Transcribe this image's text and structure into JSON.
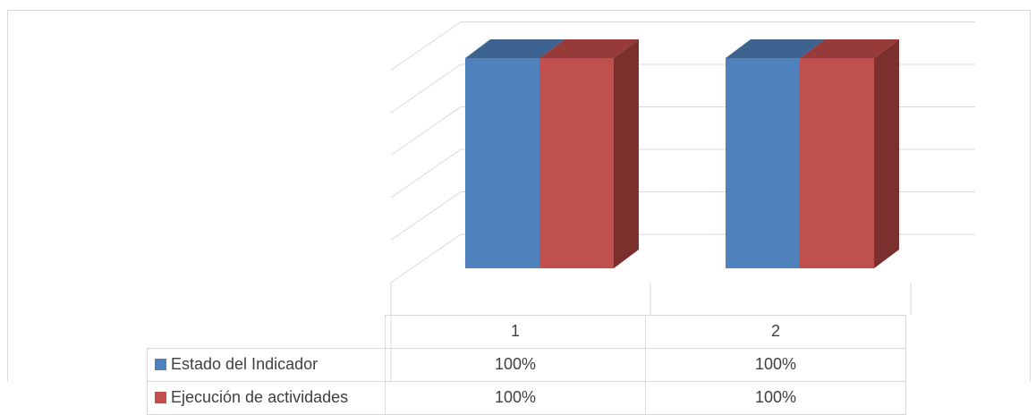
{
  "chart_data": {
    "type": "bar",
    "categories": [
      "1",
      "2"
    ],
    "series": [
      {
        "name": "Estado del Indicador",
        "values": [
          100,
          100
        ],
        "labels": [
          "100%",
          "100%"
        ],
        "color": "#4f81bd",
        "side_color": "#2f4d71",
        "top_color": "#3d6391"
      },
      {
        "name": "Ejecución de actividades",
        "values": [
          100,
          100
        ],
        "labels": [
          "100%",
          "100%"
        ],
        "color": "#c0504d",
        "side_color": "#7b302e",
        "top_color": "#963b39"
      }
    ],
    "ylim": [
      0,
      120
    ],
    "grid": true,
    "legend": "data table below plot",
    "style": "3d-column"
  }
}
